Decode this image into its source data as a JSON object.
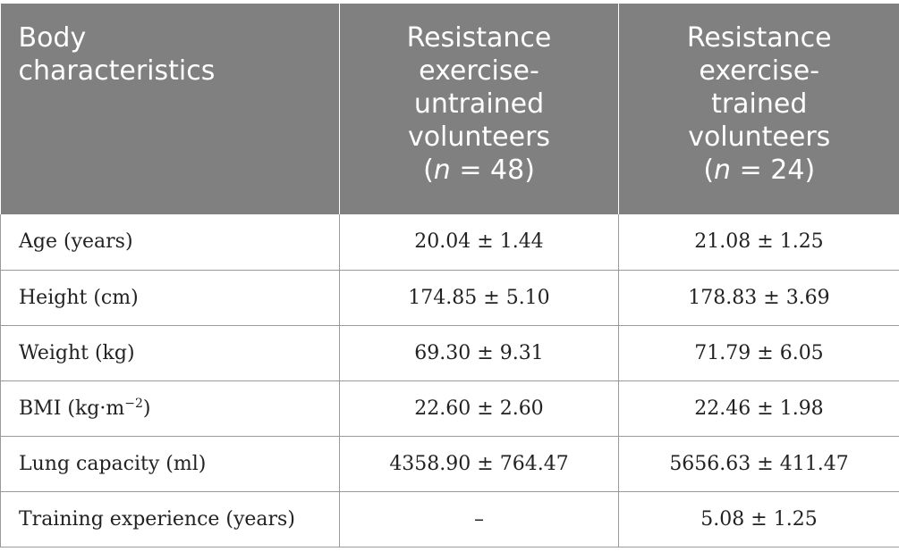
{
  "table": {
    "header": {
      "col1": {
        "line1": "Body",
        "line2": "characteristics"
      },
      "col2": {
        "line1": "Resistance",
        "line2": "exercise-",
        "line3": "untrained",
        "line4": "volunteers",
        "n_open": "(",
        "n_var": "n",
        "n_rest": " = 48)"
      },
      "col3": {
        "line1": "Resistance",
        "line2": "exercise-",
        "line3": "trained",
        "line4": "volunteers",
        "n_open": "(",
        "n_var": "n",
        "n_rest": " = 24)"
      }
    },
    "rows": [
      {
        "label": "Age (years)",
        "untrained": "20.04 ± 1.44",
        "trained": "21.08 ± 1.25"
      },
      {
        "label": "Height (cm)",
        "untrained": "174.85 ± 5.10",
        "trained": "178.83 ± 3.69"
      },
      {
        "label": "Weight (kg)",
        "untrained": "69.30 ± 9.31",
        "trained": "71.79 ± 6.05"
      },
      {
        "label_pre": "BMI (kg·m",
        "label_sup": "−2",
        "label_post": ")",
        "untrained": "22.60 ± 2.60",
        "trained": "22.46 ± 1.98"
      },
      {
        "label": "Lung capacity (ml)",
        "untrained": "4358.90 ± 764.47",
        "trained": "5656.63 ± 411.47"
      },
      {
        "label": "Training experience (years)",
        "untrained": "–",
        "trained": "5.08 ± 1.25"
      }
    ]
  },
  "colors": {
    "header_bg": "#7f807f",
    "header_text": "#ffffff",
    "border": "#9a9a9a"
  }
}
